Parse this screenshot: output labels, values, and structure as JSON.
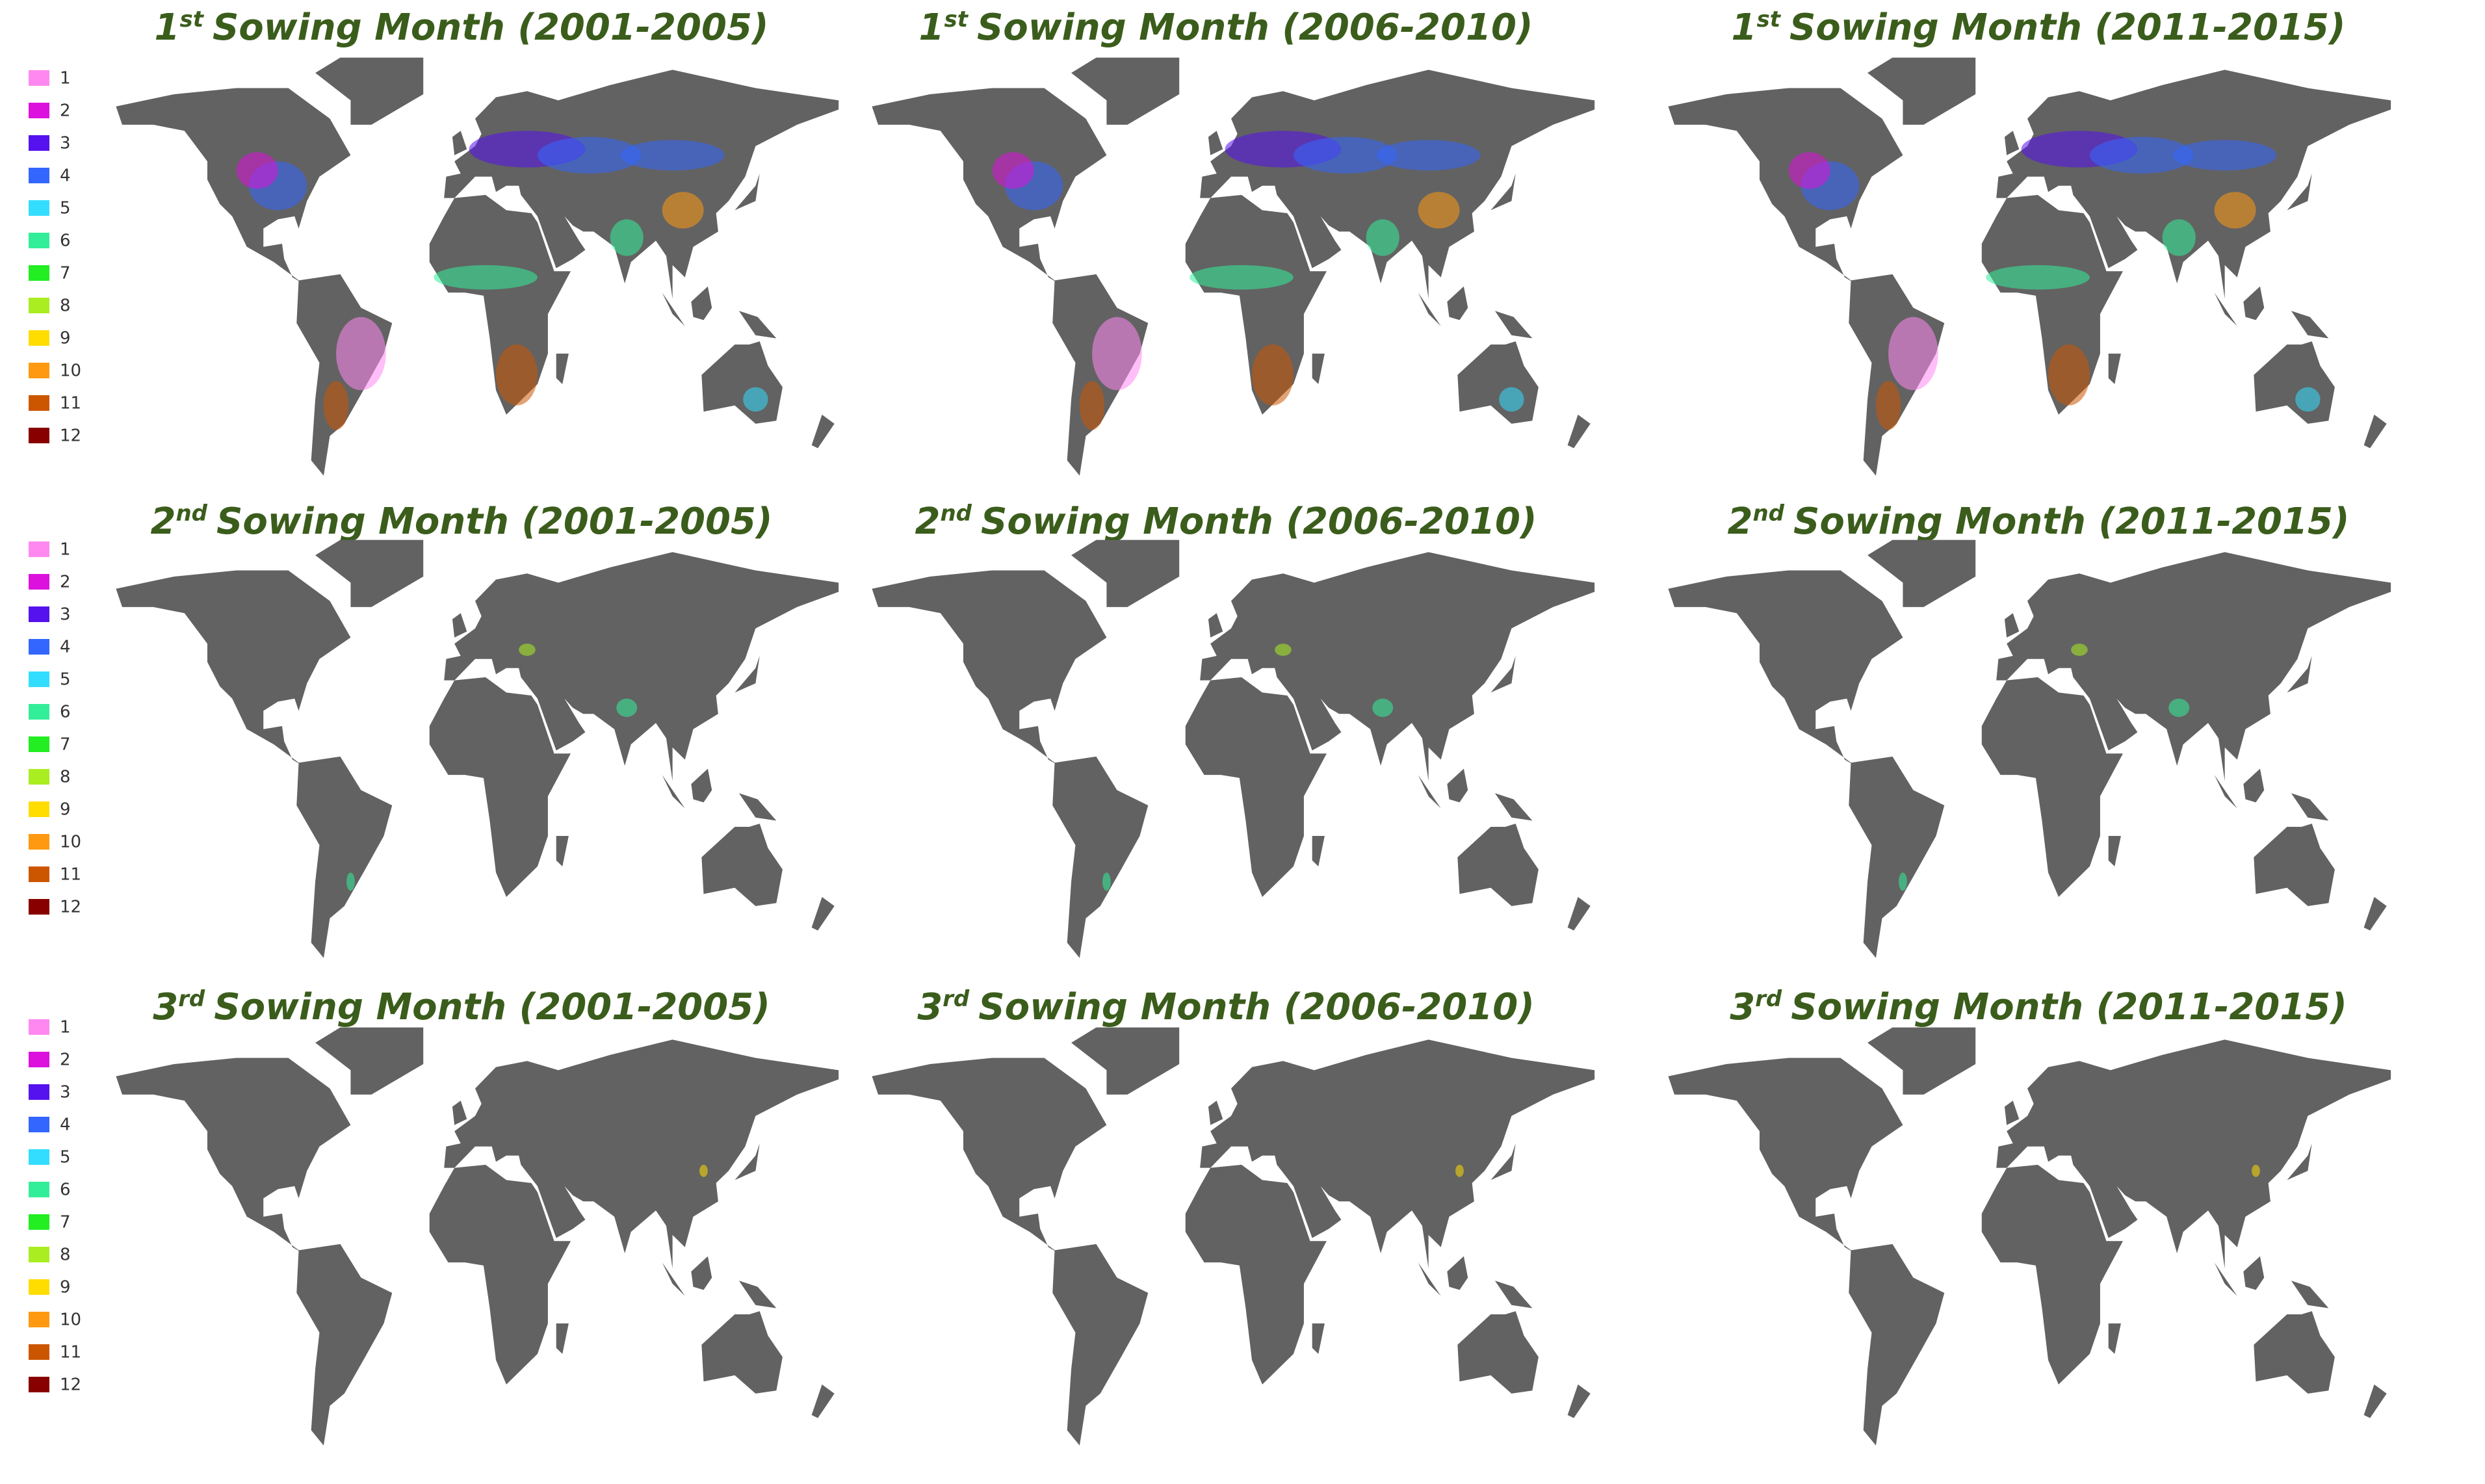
{
  "legend": [
    {
      "label": "1",
      "color": "#ff88f0"
    },
    {
      "label": "2",
      "color": "#dd11dd"
    },
    {
      "label": "3",
      "color": "#5511ee"
    },
    {
      "label": "4",
      "color": "#3366ff"
    },
    {
      "label": "5",
      "color": "#33ddff"
    },
    {
      "label": "6",
      "color": "#33ee99"
    },
    {
      "label": "7",
      "color": "#22ee22"
    },
    {
      "label": "8",
      "color": "#aaee22"
    },
    {
      "label": "9",
      "color": "#ffdd00"
    },
    {
      "label": "10",
      "color": "#ff9911"
    },
    {
      "label": "11",
      "color": "#cc5500"
    },
    {
      "label": "12",
      "color": "#880000"
    }
  ],
  "rows": [
    {
      "panels": [
        {
          "ordinal": "1",
          "suffix": "st",
          "title": "Sowing Month (2001-2005)"
        },
        {
          "ordinal": "1",
          "suffix": "st",
          "title": "Sowing Month (2006-2010)"
        },
        {
          "ordinal": "1",
          "suffix": "st",
          "title": "Sowing Month (2011-2015)"
        }
      ]
    },
    {
      "panels": [
        {
          "ordinal": "2",
          "suffix": "nd",
          "title": "Sowing Month (2001-2005)"
        },
        {
          "ordinal": "2",
          "suffix": "nd",
          "title": "Sowing Month (2006-2010)"
        },
        {
          "ordinal": "2",
          "suffix": "nd",
          "title": "Sowing Month (2011-2015)"
        }
      ]
    },
    {
      "panels": [
        {
          "ordinal": "3",
          "suffix": "rd",
          "title": "Sowing Month (2001-2005)"
        },
        {
          "ordinal": "3",
          "suffix": "rd",
          "title": "Sowing Month (2006-2010)"
        },
        {
          "ordinal": "3",
          "suffix": "rd",
          "title": "Sowing Month (2011-2015)"
        }
      ]
    }
  ]
}
